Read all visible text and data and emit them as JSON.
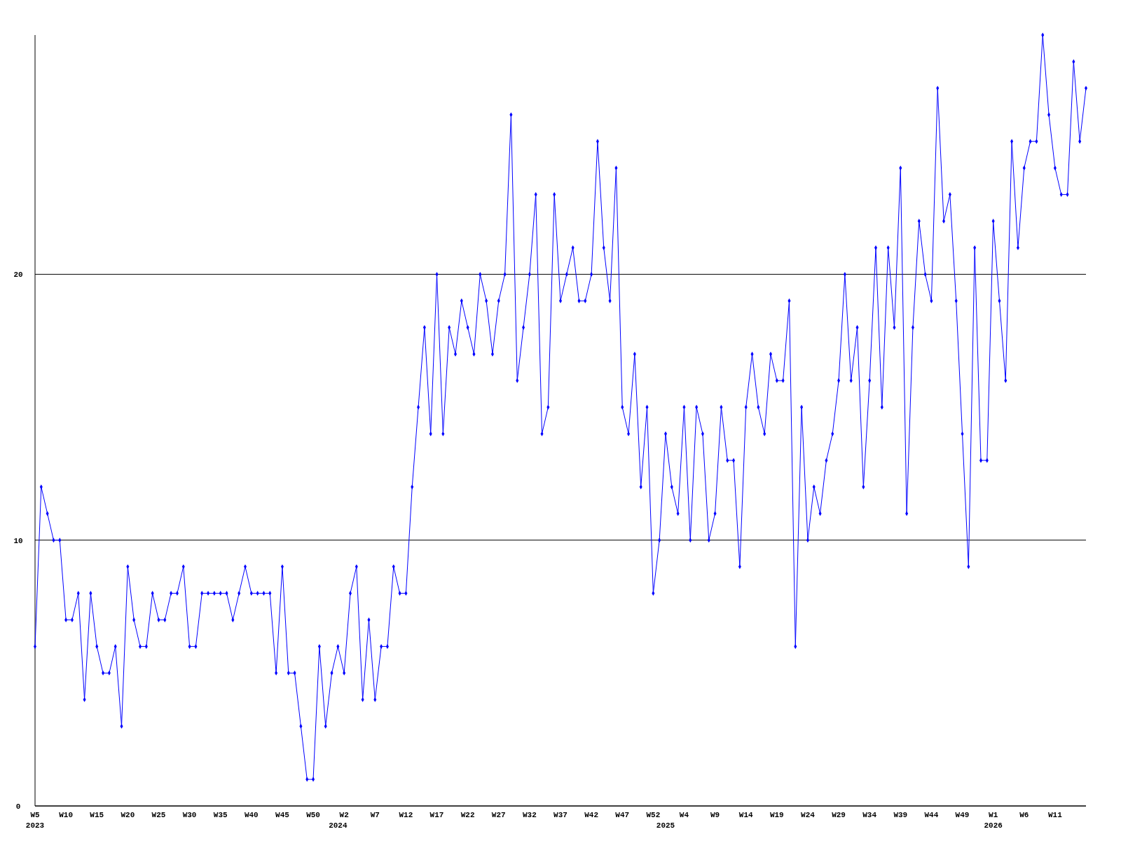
{
  "chart_data": {
    "type": "line",
    "categories": [
      "W5\n2023",
      null,
      null,
      null,
      null,
      "W10",
      null,
      null,
      null,
      null,
      "W15",
      null,
      null,
      null,
      null,
      "W20",
      null,
      null,
      null,
      null,
      "W25",
      null,
      null,
      null,
      null,
      "W30",
      null,
      null,
      null,
      null,
      "W35",
      null,
      null,
      null,
      null,
      "W40",
      null,
      null,
      null,
      null,
      "W45",
      null,
      null,
      null,
      null,
      "W50",
      null,
      null,
      null,
      "\n2024",
      "W2",
      null,
      null,
      null,
      null,
      "W7",
      null,
      null,
      null,
      null,
      "W12",
      null,
      null,
      null,
      null,
      "W17",
      null,
      null,
      null,
      null,
      "W22",
      null,
      null,
      null,
      null,
      "W27",
      null,
      null,
      null,
      null,
      "W32",
      null,
      null,
      null,
      null,
      "W37",
      null,
      null,
      null,
      null,
      "W42",
      null,
      null,
      null,
      null,
      "W47",
      null,
      null,
      null,
      null,
      "W52",
      null,
      "\n2025",
      null,
      null,
      "W4",
      null,
      null,
      null,
      null,
      "W9",
      null,
      null,
      null,
      null,
      "W14",
      null,
      null,
      null,
      null,
      "W19",
      null,
      null,
      null,
      null,
      "W24",
      null,
      null,
      null,
      null,
      "W29",
      null,
      null,
      null,
      null,
      "W34",
      null,
      null,
      null,
      null,
      "W39",
      null,
      null,
      null,
      null,
      "W44",
      null,
      null,
      null,
      null,
      "W49",
      null,
      null,
      null,
      null,
      "W1\n2026",
      null,
      null,
      null,
      null,
      "W6",
      null,
      null,
      null,
      null,
      "W11",
      null,
      null,
      null,
      null,
      null
    ],
    "series": [
      {
        "color": "#0000ff",
        "values": [
          6,
          12,
          11,
          10,
          10,
          7,
          7,
          8,
          4,
          8,
          6,
          5,
          5,
          6,
          3,
          9,
          7,
          6,
          6,
          8,
          7,
          7,
          8,
          8,
          9,
          6,
          6,
          8,
          8,
          8,
          8,
          8,
          7,
          8,
          9,
          8,
          8,
          8,
          8,
          5,
          9,
          5,
          5,
          3,
          1,
          1,
          6,
          3,
          5,
          6,
          5,
          8,
          9,
          4,
          7,
          4,
          6,
          6,
          9,
          8,
          8,
          12,
          15,
          18,
          14,
          20,
          14,
          18,
          17,
          19,
          18,
          17,
          20,
          19,
          17,
          19,
          20,
          26,
          16,
          18,
          20,
          23,
          14,
          15,
          23,
          19,
          20,
          21,
          19,
          19,
          20,
          25,
          21,
          19,
          24,
          15,
          14,
          17,
          12,
          15,
          8,
          10,
          14,
          12,
          11,
          15,
          10,
          15,
          14,
          10,
          11,
          15,
          13,
          13,
          9,
          15,
          17,
          15,
          14,
          17,
          16,
          16,
          19,
          6,
          15,
          10,
          12,
          11,
          13,
          14,
          16,
          20,
          16,
          18,
          12,
          16,
          21,
          15,
          21,
          18,
          24,
          11,
          18,
          22,
          20,
          19,
          27,
          22,
          23,
          19,
          14,
          9,
          21,
          13,
          13,
          22,
          19,
          16,
          25,
          21,
          24,
          25,
          25,
          29,
          26,
          24,
          23,
          23,
          28,
          25,
          27
        ]
      }
    ],
    "ylim": [
      0,
      29
    ],
    "yticks": [
      0,
      10,
      20
    ],
    "grid": "y",
    "marker": "diamond",
    "line_style": "solid"
  }
}
